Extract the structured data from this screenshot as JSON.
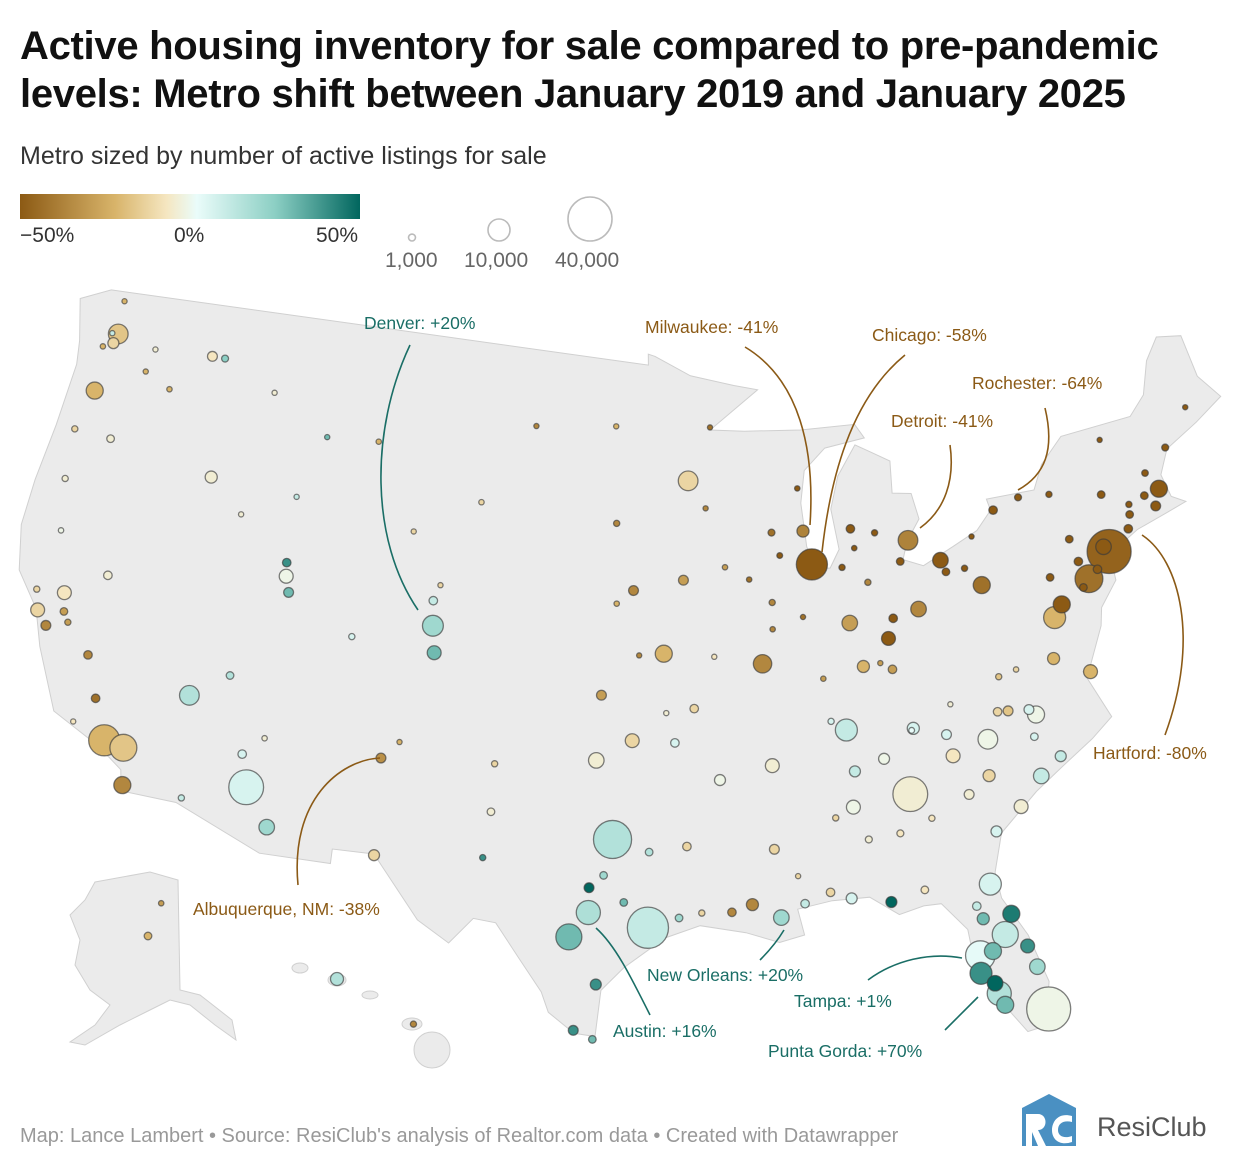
{
  "title": "Active housing inventory for sale compared to pre-pandemic levels: Metro shift between January 2019 and January 2025",
  "subtitle": "Metro sized by number of active listings for sale",
  "color_legend": {
    "min_label": "−50%",
    "mid_label": "0%",
    "max_label": "50%",
    "stops": [
      [
        -50,
        "#8c5a14"
      ],
      [
        -30,
        "#d8b46a"
      ],
      [
        -15,
        "#f5e6c0"
      ],
      [
        0,
        "#eafcfa"
      ],
      [
        25,
        "#8ccfc4"
      ],
      [
        50,
        "#01665e"
      ]
    ]
  },
  "size_legend": [
    {
      "value": 1000,
      "label": "1,000"
    },
    {
      "value": 10000,
      "label": "10,000"
    },
    {
      "value": 40000,
      "label": "40,000"
    }
  ],
  "annotations": {
    "denver": "Denver: +20%",
    "milwaukee": "Milwaukee: -41%",
    "chicago": "Chicago: -58%",
    "detroit": "Detroit: -41%",
    "rochester": "Rochester: -64%",
    "hartford": "Hartford: -80%",
    "albuquerque": "Albuquerque, NM: -38%",
    "austin": "Austin: +16%",
    "new_orleans": "New Orleans: +20%",
    "tampa": "Tampa: +1%",
    "punta_gorda": "Punta Gorda: +70%"
  },
  "colors": {
    "land": "#ebebeb",
    "brown_text": "#8b5a16",
    "teal_text": "#1a6e66",
    "logo": "#4a90c2"
  },
  "footer": "Map: Lance Lambert • Source: ResiClub's analysis of Realtor.com data • Created with Datawrapper",
  "logo": {
    "text": "ResiClub",
    "mark": "RC"
  },
  "metros_columns": [
    "lat",
    "lon",
    "change_pct",
    "active_listings"
  ],
  "metros": [
    [
      40.7,
      -74.0,
      -48,
      40000
    ],
    [
      39.95,
      -75.17,
      -45,
      16000
    ],
    [
      34.05,
      -118.25,
      -30,
      20000
    ],
    [
      33.95,
      -117.4,
      -25,
      15000
    ],
    [
      32.7,
      -117.1,
      -40,
      6000
    ],
    [
      33.45,
      -112.07,
      5,
      25000
    ],
    [
      36.17,
      -115.14,
      15,
      8000
    ],
    [
      29.76,
      -95.37,
      10,
      35000
    ],
    [
      32.78,
      -96.8,
      15,
      30000
    ],
    [
      30.27,
      -97.74,
      16,
      12000
    ],
    [
      29.42,
      -98.49,
      30,
      14000
    ],
    [
      33.75,
      -84.39,
      -10,
      25000
    ],
    [
      25.76,
      -80.19,
      -5,
      40000
    ],
    [
      27.95,
      -82.46,
      1,
      18000
    ],
    [
      28.54,
      -81.38,
      10,
      14000
    ],
    [
      30.33,
      -81.66,
      5,
      10000
    ],
    [
      26.93,
      -82.05,
      70,
      5000
    ],
    [
      26.56,
      -81.95,
      15,
      12000
    ],
    [
      27.34,
      -82.53,
      40,
      10000
    ],
    [
      47.6,
      -122.33,
      -25,
      8000
    ],
    [
      45.5,
      -122.68,
      -30,
      6000
    ],
    [
      37.77,
      -122.42,
      -20,
      4000
    ],
    [
      38.58,
      -121.49,
      -15,
      4000
    ],
    [
      37.34,
      -121.89,
      -40,
      2000
    ],
    [
      39.74,
      -104.99,
      20,
      9000
    ],
    [
      38.83,
      -104.82,
      30,
      4000
    ],
    [
      40.76,
      -111.89,
      -5,
      4000
    ],
    [
      43.6,
      -116.2,
      -10,
      3000
    ],
    [
      35.08,
      -106.65,
      -38,
      2000
    ],
    [
      32.22,
      -110.97,
      20,
      5000
    ],
    [
      31.76,
      -106.49,
      -20,
      2500
    ],
    [
      35.47,
      -97.52,
      -10,
      5000
    ],
    [
      36.15,
      -95.99,
      -20,
      4000
    ],
    [
      39.1,
      -94.58,
      -30,
      6000
    ],
    [
      38.63,
      -90.2,
      -40,
      7000
    ],
    [
      44.98,
      -93.27,
      -20,
      8000
    ],
    [
      41.88,
      -87.63,
      -58,
      20000
    ],
    [
      43.04,
      -87.91,
      -41,
      3000
    ],
    [
      42.33,
      -83.05,
      -41,
      8000
    ],
    [
      41.5,
      -81.69,
      -50,
      5000
    ],
    [
      39.96,
      -83.0,
      -40,
      5000
    ],
    [
      39.1,
      -84.51,
      -50,
      4000
    ],
    [
      39.77,
      -86.16,
      -35,
      5000
    ],
    [
      40.44,
      -80.0,
      -45,
      6000
    ],
    [
      43.16,
      -77.61,
      -64,
      1000
    ],
    [
      42.89,
      -78.88,
      -60,
      1500
    ],
    [
      42.36,
      -71.06,
      -55,
      6000
    ],
    [
      41.76,
      -72.68,
      -80,
      1200
    ],
    [
      39.29,
      -76.61,
      -50,
      6000
    ],
    [
      38.9,
      -77.04,
      -30,
      10000
    ],
    [
      37.54,
      -77.44,
      -30,
      3000
    ],
    [
      36.85,
      -75.98,
      -30,
      4000
    ],
    [
      35.78,
      -78.64,
      -5,
      6000
    ],
    [
      35.23,
      -80.84,
      -5,
      8000
    ],
    [
      36.16,
      -86.78,
      10,
      10000
    ],
    [
      35.15,
      -90.05,
      -10,
      4000
    ],
    [
      38.25,
      -85.76,
      -30,
      3000
    ],
    [
      33.52,
      -86.8,
      -5,
      4000
    ],
    [
      29.95,
      -90.07,
      20,
      5000
    ],
    [
      30.45,
      -91.19,
      -40,
      3000
    ],
    [
      32.3,
      -90.18,
      -20,
      2000
    ],
    [
      34.75,
      -92.29,
      -5,
      2500
    ],
    [
      35.96,
      -83.92,
      5,
      3000
    ],
    [
      34.85,
      -82.4,
      -15,
      4000
    ],
    [
      32.78,
      -79.93,
      -10,
      4000
    ],
    [
      34.0,
      -81.03,
      -20,
      3000
    ],
    [
      32.08,
      -81.09,
      5,
      2500
    ],
    [
      33.69,
      -78.89,
      10,
      5000
    ],
    [
      30.42,
      -87.22,
      5,
      2500
    ],
    [
      30.16,
      -85.66,
      55,
      2500
    ],
    [
      30.37,
      -89.09,
      10,
      1500
    ],
    [
      30.44,
      -84.28,
      -15,
      1200
    ],
    [
      41.26,
      -95.93,
      -40,
      2000
    ],
    [
      41.59,
      -93.62,
      -35,
      2000
    ],
    [
      37.69,
      -97.34,
      -35,
      2000
    ],
    [
      47.66,
      -117.43,
      -15,
      2000
    ],
    [
      39.53,
      -119.81,
      -10,
      1500
    ],
    [
      36.74,
      -119.79,
      -40,
      1500
    ],
    [
      35.37,
      -119.02,
      -45,
      1500
    ],
    [
      27.8,
      -97.4,
      40,
      2500
    ],
    [
      26.2,
      -98.23,
      40,
      2000
    ],
    [
      25.9,
      -97.5,
      30,
      1200
    ],
    [
      33.58,
      -101.86,
      -10,
      1200
    ],
    [
      35.22,
      -101.83,
      -20,
      800
    ],
    [
      32.0,
      -102.08,
      40,
      800
    ],
    [
      40.59,
      -105.08,
      10,
      1500
    ],
    [
      39.06,
      -108.55,
      5,
      800
    ],
    [
      45.78,
      -108.5,
      -30,
      600
    ],
    [
      45.68,
      -111.04,
      30,
      500
    ],
    [
      46.87,
      -113.99,
      -10,
      500
    ],
    [
      47.68,
      -116.78,
      25,
      1000
    ],
    [
      41.14,
      -104.82,
      -20,
      400
    ],
    [
      43.55,
      -96.73,
      -40,
      800
    ],
    [
      46.88,
      -96.79,
      -30,
      500
    ],
    [
      46.81,
      -100.78,
      -40,
      400
    ],
    [
      44.08,
      -103.23,
      -20,
      600
    ],
    [
      44.51,
      -88.01,
      -50,
      600
    ],
    [
      43.07,
      -89.4,
      -45,
      1000
    ],
    [
      42.96,
      -85.67,
      -55,
      1500
    ],
    [
      41.65,
      -83.54,
      -55,
      1200
    ],
    [
      42.65,
      -73.75,
      -60,
      1200
    ],
    [
      43.05,
      -76.15,
      -65,
      800
    ],
    [
      43.66,
      -70.26,
      -55,
      1000
    ],
    [
      41.82,
      -71.41,
      -65,
      2000
    ],
    [
      40.6,
      -75.47,
      -60,
      1500
    ],
    [
      40.27,
      -76.88,
      -60,
      1200
    ],
    [
      41.41,
      -75.66,
      -60,
      1200
    ],
    [
      42.26,
      -71.8,
      -60,
      1200
    ],
    [
      44.48,
      -73.21,
      -50,
      400
    ],
    [
      37.21,
      -93.29,
      -20,
      1500
    ],
    [
      34.73,
      -86.59,
      10,
      2500
    ],
    [
      35.05,
      -85.31,
      -5,
      2500
    ],
    [
      35.6,
      -82.55,
      5,
      2000
    ],
    [
      38.04,
      -84.5,
      -35,
      1500
    ],
    [
      39.76,
      -84.19,
      -50,
      1500
    ],
    [
      41.08,
      -81.52,
      -50,
      1200
    ],
    [
      36.06,
      -94.16,
      5,
      1500
    ],
    [
      32.52,
      -93.75,
      -20,
      1500
    ],
    [
      30.22,
      -92.02,
      -40,
      1500
    ],
    [
      30.23,
      -93.22,
      -20,
      800
    ],
    [
      31.12,
      -97.73,
      50,
      2000
    ],
    [
      31.55,
      -97.15,
      20,
      1200
    ],
    [
      32.35,
      -95.3,
      15,
      1200
    ],
    [
      30.63,
      -96.33,
      30,
      1200
    ],
    [
      30.08,
      -94.13,
      20,
      1200
    ],
    [
      35.69,
      -105.94,
      -30,
      500
    ],
    [
      35.2,
      -111.65,
      -10,
      600
    ],
    [
      34.54,
      -112.47,
      5,
      1500
    ],
    [
      37.1,
      -113.58,
      15,
      1200
    ],
    [
      40.23,
      -111.66,
      30,
      2000
    ],
    [
      41.22,
      -111.97,
      40,
      1500
    ],
    [
      42.33,
      -122.87,
      -10,
      800
    ],
    [
      44.05,
      -123.09,
      -20,
      800
    ],
    [
      44.06,
      -121.31,
      -10,
      1200
    ],
    [
      40.59,
      -122.39,
      -5,
      600
    ],
    [
      38.44,
      -122.71,
      -20,
      800
    ],
    [
      37.96,
      -121.29,
      -35,
      1200
    ],
    [
      37.64,
      -121.0,
      -35,
      800
    ],
    [
      34.42,
      -119.7,
      -15,
      500
    ],
    [
      32.69,
      -114.62,
      10,
      800
    ],
    [
      26.14,
      -81.79,
      30,
      6000
    ],
    [
      27.27,
      -80.35,
      20,
      5000
    ],
    [
      28.03,
      -80.59,
      40,
      4000
    ],
    [
      29.21,
      -81.02,
      45,
      6000
    ],
    [
      28.04,
      -81.95,
      30,
      6000
    ],
    [
      29.19,
      -82.14,
      30,
      3000
    ],
    [
      29.65,
      -82.32,
      10,
      1500
    ],
    [
      42.13,
      -80.09,
      -50,
      500
    ],
    [
      41.1,
      -80.65,
      -55,
      800
    ],
    [
      41.08,
      -85.14,
      -40,
      800
    ],
    [
      41.68,
      -86.25,
      -55,
      800
    ],
    [
      42.73,
      -84.56,
      -50,
      800
    ],
    [
      42.29,
      -85.59,
      -55,
      600
    ],
    [
      40.69,
      -89.59,
      -40,
      800
    ],
    [
      39.78,
      -89.65,
      -40,
      600
    ],
    [
      40.12,
      -88.24,
      -45,
      500
    ],
    [
      37.97,
      -87.57,
      -35,
      600
    ],
    [
      41.98,
      -91.67,
      -35,
      600
    ],
    [
      41.52,
      -90.58,
      -45,
      600
    ],
    [
      42.27,
      -89.09,
      -55,
      700
    ],
    [
      46.79,
      -92.1,
      -45,
      500
    ],
    [
      44.02,
      -92.47,
      -40,
      400
    ],
    [
      40.81,
      -96.7,
      -30,
      600
    ],
    [
      39.05,
      -95.68,
      -40,
      500
    ],
    [
      38.95,
      -92.33,
      -15,
      500
    ],
    [
      37.08,
      -94.51,
      -10,
      400
    ],
    [
      37.27,
      -79.94,
      -25,
      800
    ],
    [
      37.41,
      -79.14,
      -20,
      600
    ],
    [
      34.23,
      -77.94,
      10,
      2500
    ],
    [
      35.05,
      -78.88,
      5,
      1200
    ],
    [
      36.07,
      -79.79,
      -25,
      2000
    ],
    [
      36.1,
      -80.24,
      -20,
      1500
    ],
    [
      35.99,
      -78.9,
      5,
      2000
    ],
    [
      33.47,
      -81.97,
      -10,
      2000
    ],
    [
      32.84,
      -83.63,
      -15,
      800
    ],
    [
      32.46,
      -84.99,
      -15,
      1000
    ],
    [
      32.37,
      -86.3,
      -10,
      1000
    ],
    [
      30.69,
      -88.04,
      -20,
      1500
    ],
    [
      33.21,
      -87.57,
      -20,
      800
    ],
    [
      31.33,
      -89.29,
      -20,
      400
    ],
    [
      43.49,
      -112.03,
      10,
      500
    ],
    [
      42.56,
      -114.46,
      -10,
      500
    ],
    [
      42.87,
      -106.31,
      -20,
      300
    ],
    [
      46.21,
      -119.14,
      -30,
      600
    ],
    [
      46.6,
      -120.5,
      -30,
      400
    ],
    [
      47.42,
      -120.31,
      -10,
      300
    ],
    [
      48.75,
      -122.48,
      -30,
      500
    ],
    [
      47.04,
      -122.9,
      -30,
      600
    ],
    [
      47.25,
      -122.44,
      -20,
      2500
    ],
    [
      47.57,
      -122.63,
      10,
      500
    ],
    [
      40.9,
      -74.2,
      -55,
      5000
    ],
    [
      40.2,
      -74.7,
      -55,
      1500
    ],
    [
      39.7,
      -75.5,
      -50,
      1200
    ],
    [
      41.3,
      -72.9,
      -70,
      1500
    ],
    [
      42.1,
      -72.6,
      -60,
      800
    ],
    [
      43.0,
      -71.5,
      -60,
      900
    ],
    [
      44.8,
      -68.8,
      -50,
      500
    ],
    [
      38.3,
      -85.0,
      -35,
      500
    ],
    [
      36.5,
      -87.4,
      5,
      800
    ],
    [
      35.9,
      -84.0,
      0,
      700
    ],
    [
      36.6,
      -82.2,
      -10,
      500
    ]
  ],
  "insets": {
    "alaska": [
      [
        61.2,
        -149.9,
        -30,
        1200
      ],
      [
        64.84,
        -147.7,
        -35,
        600
      ]
    ],
    "hawaii": [
      [
        21.3,
        -157.86,
        15,
        3500
      ],
      [
        20.89,
        -156.47,
        -40,
        800
      ]
    ]
  }
}
